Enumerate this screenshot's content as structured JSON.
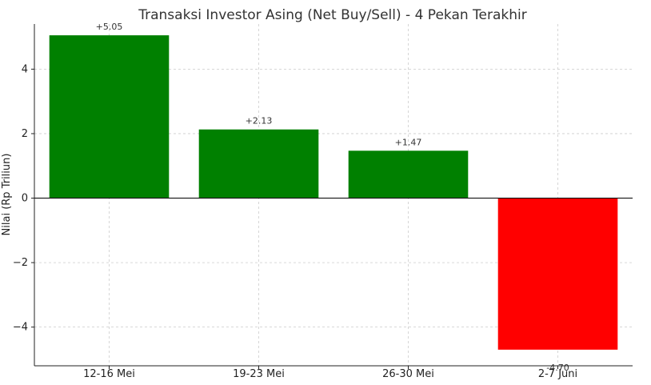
{
  "chart_data": {
    "type": "bar",
    "title": "Transaksi Investor Asing (Net Buy/Sell) - 4 Pekan Terakhir",
    "xlabel": "",
    "ylabel": "Nilai (Rp Triliun)",
    "categories": [
      "12-16 Mei",
      "19-23 Mei",
      "26-30 Mei",
      "2-7 Juni"
    ],
    "values": [
      5.05,
      2.13,
      1.47,
      -4.7
    ],
    "data_labels": [
      "+5.05",
      "+2.13",
      "+1.47",
      "-4.70"
    ],
    "bar_colors": [
      "#008000",
      "#008000",
      "#008000",
      "#ff0000"
    ],
    "ylim": [
      -5.2,
      5.4
    ],
    "yticks": [
      -4,
      -2,
      0,
      2,
      4
    ],
    "ytick_labels": [
      "−4",
      "−2",
      "0",
      "2",
      "4"
    ],
    "grid": true,
    "legend": "none"
  }
}
